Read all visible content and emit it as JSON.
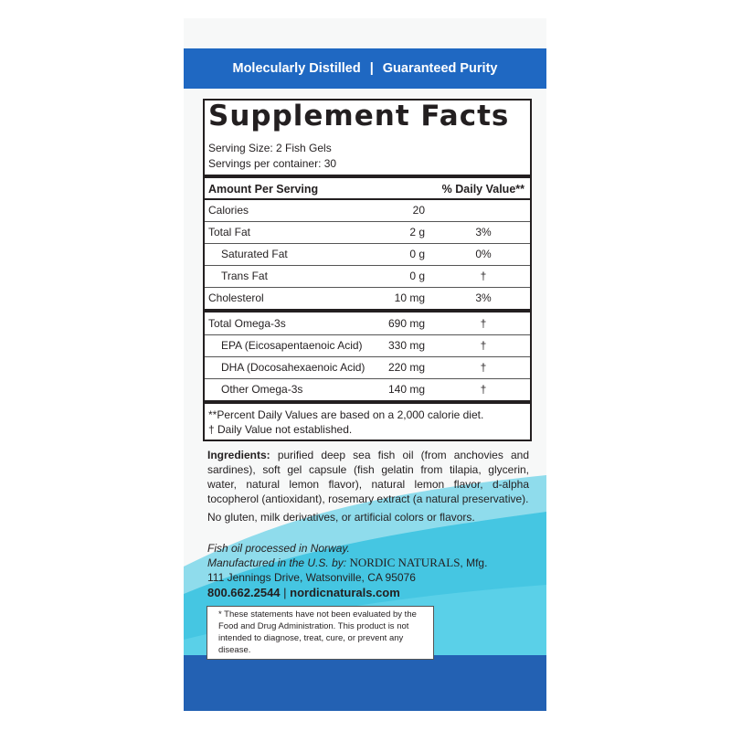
{
  "band": {
    "left": "Molecularly Distilled",
    "separator": "|",
    "right": "Guaranteed Purity"
  },
  "facts": {
    "title": "Supplement Facts",
    "serving_size": "Serving Size: 2 Fish Gels",
    "servings_per_container": "Servings per container: 30",
    "header_amount": "Amount Per Serving",
    "header_dv": "% Daily Value**",
    "rows": [
      {
        "name": "Calories",
        "amount": "20",
        "dv": ""
      },
      {
        "name": "Total Fat",
        "amount": "2 g",
        "dv": "3%"
      },
      {
        "name": "Saturated Fat",
        "amount": "0 g",
        "dv": "0%"
      },
      {
        "name": "Trans Fat",
        "amount": "0 g",
        "dv": "†"
      },
      {
        "name": "Cholesterol",
        "amount": "10 mg",
        "dv": "3%"
      },
      {
        "name": "Total Omega-3s",
        "amount": "690 mg",
        "dv": "†"
      },
      {
        "name": "EPA (Eicosapentaenoic Acid)",
        "amount": "330 mg",
        "dv": "†"
      },
      {
        "name": "DHA (Docosahexaenoic Acid)",
        "amount": "220 mg",
        "dv": "†"
      },
      {
        "name": "Other Omega-3s",
        "amount": "140 mg",
        "dv": "†"
      }
    ],
    "footnote1": "**Percent Daily Values are based on a 2,000 calorie diet.",
    "footnote2": "†  Daily Value not established."
  },
  "ingredients": {
    "label": "Ingredients:",
    "text": " purified deep sea fish oil (from anchovies and sardines), soft gel capsule (fish gelatin from tilapia, glycerin, water, natural lemon flavor), natural lemon flavor, d-alpha tocopherol (antioxidant), rosemary extract (a natural preservative).",
    "free_from": "No gluten, milk derivatives, or artificial colors or flavors."
  },
  "origin": {
    "processed": "Fish oil processed in Norway.",
    "manufactured_prefix": "Manufactured in the U.S. by:",
    "brand": "NORDIC NATURALS",
    "mfg": ", Mfg.",
    "address": "111 Jennings Drive, Watsonville, CA 95076",
    "phone": "800.662.2544",
    "separator": "|",
    "website": "nordicnaturals.com"
  },
  "disclaimer": "* These statements have not been evaluated by the Food and Drug Administration. This product is not intended to diagnose, treat, cure, or prevent any disease.",
  "colors": {
    "band_blue": "#1f68c2",
    "bottom_blue": "#2361b3",
    "wave_aqua": "#3cc4e0"
  }
}
